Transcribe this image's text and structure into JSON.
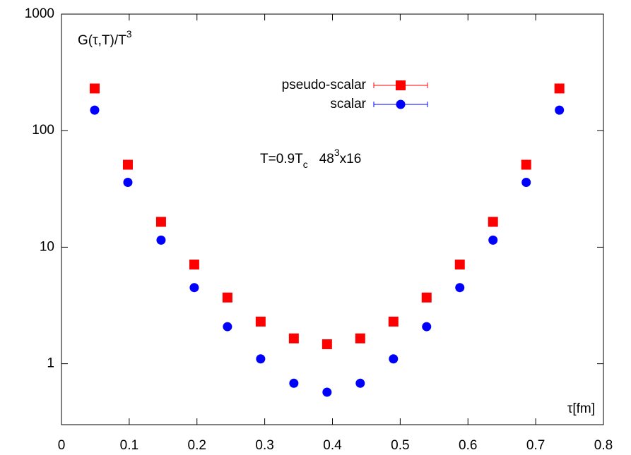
{
  "chart_data": {
    "type": "scatter",
    "log_y": true,
    "y_label": [
      "G(τ,T)/T",
      "3"
    ],
    "x_label": "τ[fm]",
    "annotation": [
      "T=0.9T",
      "c",
      "48",
      "3",
      "x16"
    ],
    "legend": "top-center",
    "x": [
      0.049,
      0.098,
      0.147,
      0.196,
      0.245,
      0.294,
      0.343,
      0.392,
      0.441,
      0.49,
      0.539,
      0.588,
      0.637,
      0.686,
      0.735
    ],
    "series": [
      {
        "name": "pseudo-scalar",
        "color": "#ff0000",
        "marker": "square",
        "values": [
          230,
          51,
          16.5,
          7.1,
          3.7,
          2.3,
          1.65,
          1.47,
          1.65,
          2.3,
          3.7,
          7.1,
          16.5,
          51,
          230
        ]
      },
      {
        "name": "scalar",
        "color": "#0000ff",
        "marker": "circle",
        "values": [
          150,
          36,
          11.5,
          4.5,
          2.08,
          1.1,
          0.68,
          0.57,
          0.68,
          1.1,
          2.08,
          4.5,
          11.5,
          36,
          150
        ]
      }
    ],
    "xlim": [
      0,
      0.8
    ],
    "xticks": [
      0,
      0.1,
      0.2,
      0.3,
      0.4,
      0.5,
      0.6,
      0.7,
      0.8
    ],
    "ylim": [
      0.3,
      1000
    ],
    "yticks": [
      1,
      10,
      100,
      1000
    ]
  }
}
